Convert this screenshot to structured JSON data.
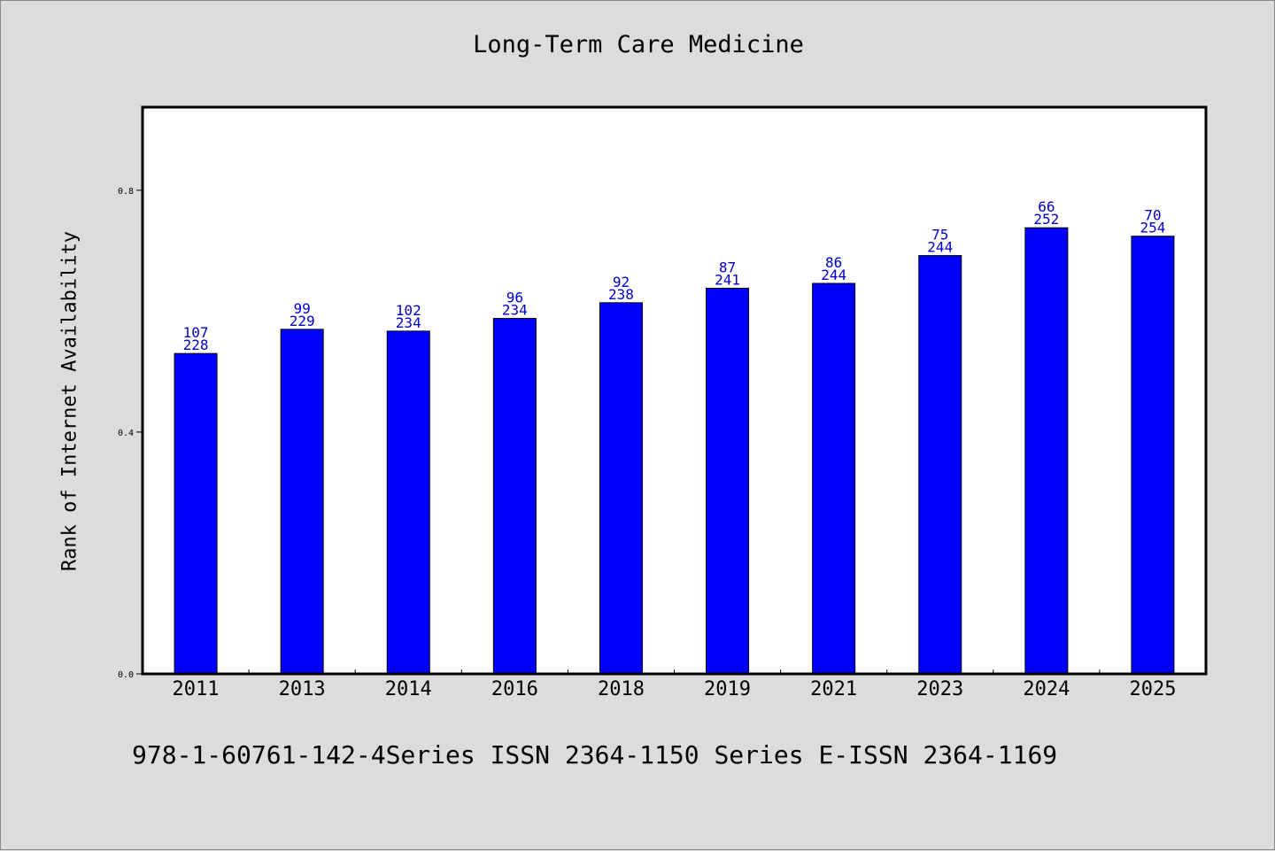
{
  "chart_data": {
    "type": "bar",
    "title": "Long-Term Care Medicine",
    "xlabel": "",
    "ylabel": "Rank of Internet Availability",
    "categories": [
      "2011",
      "2013",
      "2014",
      "2016",
      "2018",
      "2019",
      "2021",
      "2023",
      "2024",
      "2025"
    ],
    "values": [
      0.53,
      0.57,
      0.567,
      0.588,
      0.614,
      0.638,
      0.646,
      0.692,
      0.738,
      0.724
    ],
    "label_top": [
      "107",
      "99",
      "102",
      "96",
      "92",
      "87",
      "86",
      "75",
      "66",
      "70"
    ],
    "label_bottom": [
      "228",
      "229",
      "234",
      "234",
      "238",
      "241",
      "244",
      "244",
      "252",
      "254"
    ],
    "ylim": [
      0,
      0.8
    ],
    "yticks": [
      "0.0",
      "0.4",
      "0.8"
    ],
    "ytick_values": [
      0,
      0.4,
      0.8
    ],
    "bar_color": "#0000ff",
    "label_color": "#0000cc",
    "grid": false,
    "legend": "none"
  },
  "footer": "978-1-60761-142-4Series ISSN 2364-1150 Series E-ISSN 2364-1169"
}
